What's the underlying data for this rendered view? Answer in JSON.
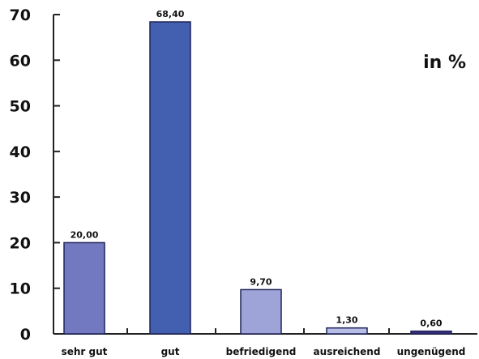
{
  "chart_data": {
    "type": "bar",
    "categories": [
      "sehr gut",
      "gut",
      "befriedigend",
      "ausreichend",
      "ungenügend"
    ],
    "values": [
      20.0,
      68.4,
      9.7,
      1.3,
      0.6
    ],
    "value_labels": [
      "20,00",
      "68,40",
      "9,70",
      "1,30",
      "0,60"
    ],
    "unit_label": "in %",
    "ylim": [
      0,
      70
    ],
    "yticks": [
      0,
      10,
      20,
      30,
      40,
      50,
      60,
      70
    ],
    "grid": false,
    "bar_colors": [
      "#7279c0",
      "#4360b0",
      "#9ea3d8",
      "#b8bde8",
      "#3c2e82"
    ]
  }
}
